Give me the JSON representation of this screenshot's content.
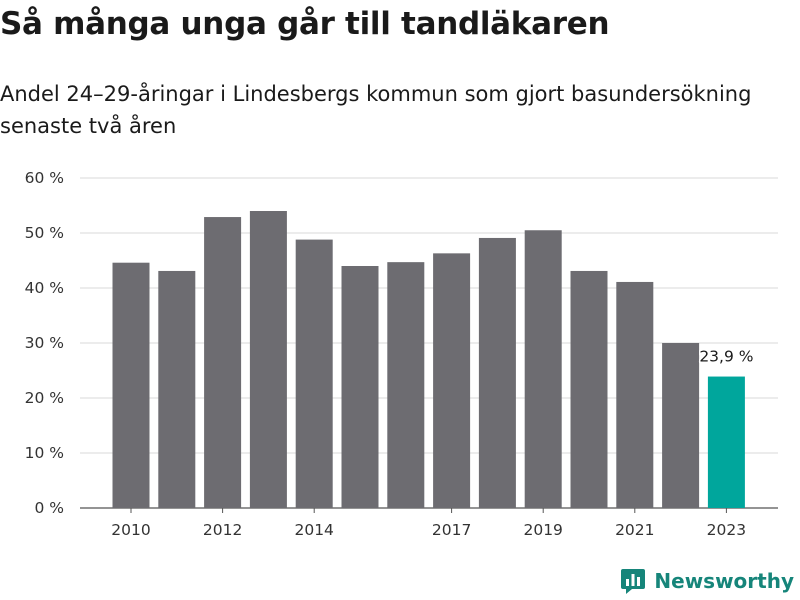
{
  "header": {
    "title": "Så många unga går till tandläkaren",
    "subtitle": "Andel 24–29-åringar i Lindesbergs kommun som gjort basundersökning senaste två åren"
  },
  "chart_data": {
    "type": "bar",
    "categories": [
      "2010",
      "2011",
      "2012",
      "2013",
      "2014",
      "2015",
      "2016",
      "2017",
      "2018",
      "2019",
      "2020",
      "2021",
      "2022",
      "2023"
    ],
    "values": [
      44.6,
      43.1,
      52.9,
      54.0,
      48.8,
      44.0,
      44.7,
      46.3,
      49.1,
      50.5,
      43.1,
      41.1,
      30.0,
      23.9
    ],
    "tick_labels_x": [
      "2010",
      "",
      "2012",
      "",
      "2014",
      "",
      "",
      "2017",
      "",
      "2019",
      "",
      "2021",
      "",
      "2023"
    ],
    "ylim": [
      0,
      60
    ],
    "yticks": [
      0,
      10,
      20,
      30,
      40,
      50,
      60
    ],
    "ytick_labels": [
      "0 %",
      "10 %",
      "20 %",
      "30 %",
      "40 %",
      "50 %",
      "60 %"
    ],
    "highlight_index": 13,
    "highlight_label": "23,9 %",
    "grid": true,
    "colors": {
      "bar": "#6d6c71",
      "highlight": "#00a69c",
      "grid": "#d9d9d9"
    }
  },
  "brand": {
    "name": "Newsworthy",
    "icon": "newsworthy-logo-icon",
    "color": "#16857a"
  }
}
